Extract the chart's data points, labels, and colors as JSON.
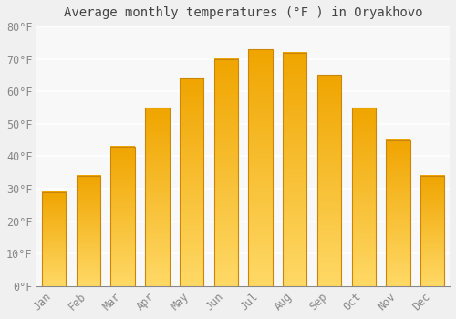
{
  "title": "Average monthly temperatures (°F ) in Oryakhovo",
  "months": [
    "Jan",
    "Feb",
    "Mar",
    "Apr",
    "May",
    "Jun",
    "Jul",
    "Aug",
    "Sep",
    "Oct",
    "Nov",
    "Dec"
  ],
  "values": [
    29,
    34,
    43,
    55,
    64,
    70,
    73,
    72,
    65,
    55,
    45,
    34
  ],
  "bar_color_top": "#F0A500",
  "bar_color_bottom": "#FFD966",
  "bar_edge_color": "#C8860A",
  "ylim": [
    0,
    80
  ],
  "yticks": [
    0,
    10,
    20,
    30,
    40,
    50,
    60,
    70,
    80
  ],
  "ytick_labels": [
    "0°F",
    "10°F",
    "20°F",
    "30°F",
    "40°F",
    "50°F",
    "60°F",
    "70°F",
    "80°F"
  ],
  "background_color": "#F0F0F0",
  "plot_bg_color": "#F8F8F8",
  "grid_color": "#FFFFFF",
  "title_fontsize": 10,
  "tick_fontsize": 8.5,
  "font_family": "monospace",
  "bar_width": 0.7
}
